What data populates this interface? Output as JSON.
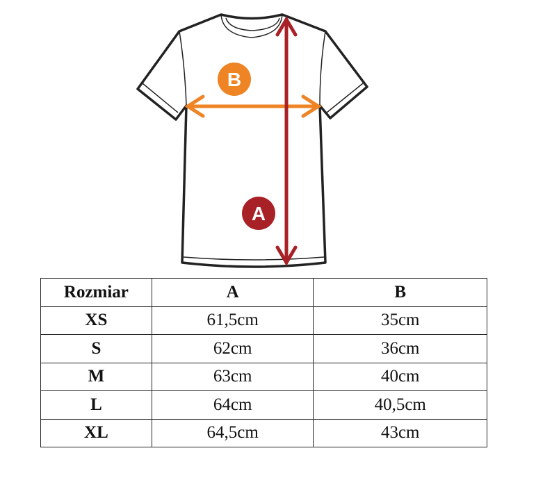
{
  "diagram": {
    "measure_a_label": "A",
    "measure_b_label": "B",
    "colors": {
      "measure_a": "#a82126",
      "measure_b": "#ee8424",
      "outline": "#222222"
    }
  },
  "table": {
    "headers": [
      "Rozmiar",
      "A",
      "B"
    ],
    "rows": [
      {
        "size": "XS",
        "a": "61,5cm",
        "b": "35cm"
      },
      {
        "size": "S",
        "a": "62cm",
        "b": "36cm"
      },
      {
        "size": "M",
        "a": "63cm",
        "b": "40cm"
      },
      {
        "size": "L",
        "a": "64cm",
        "b": "40,5cm"
      },
      {
        "size": "XL",
        "a": "64,5cm",
        "b": "43cm"
      }
    ]
  }
}
